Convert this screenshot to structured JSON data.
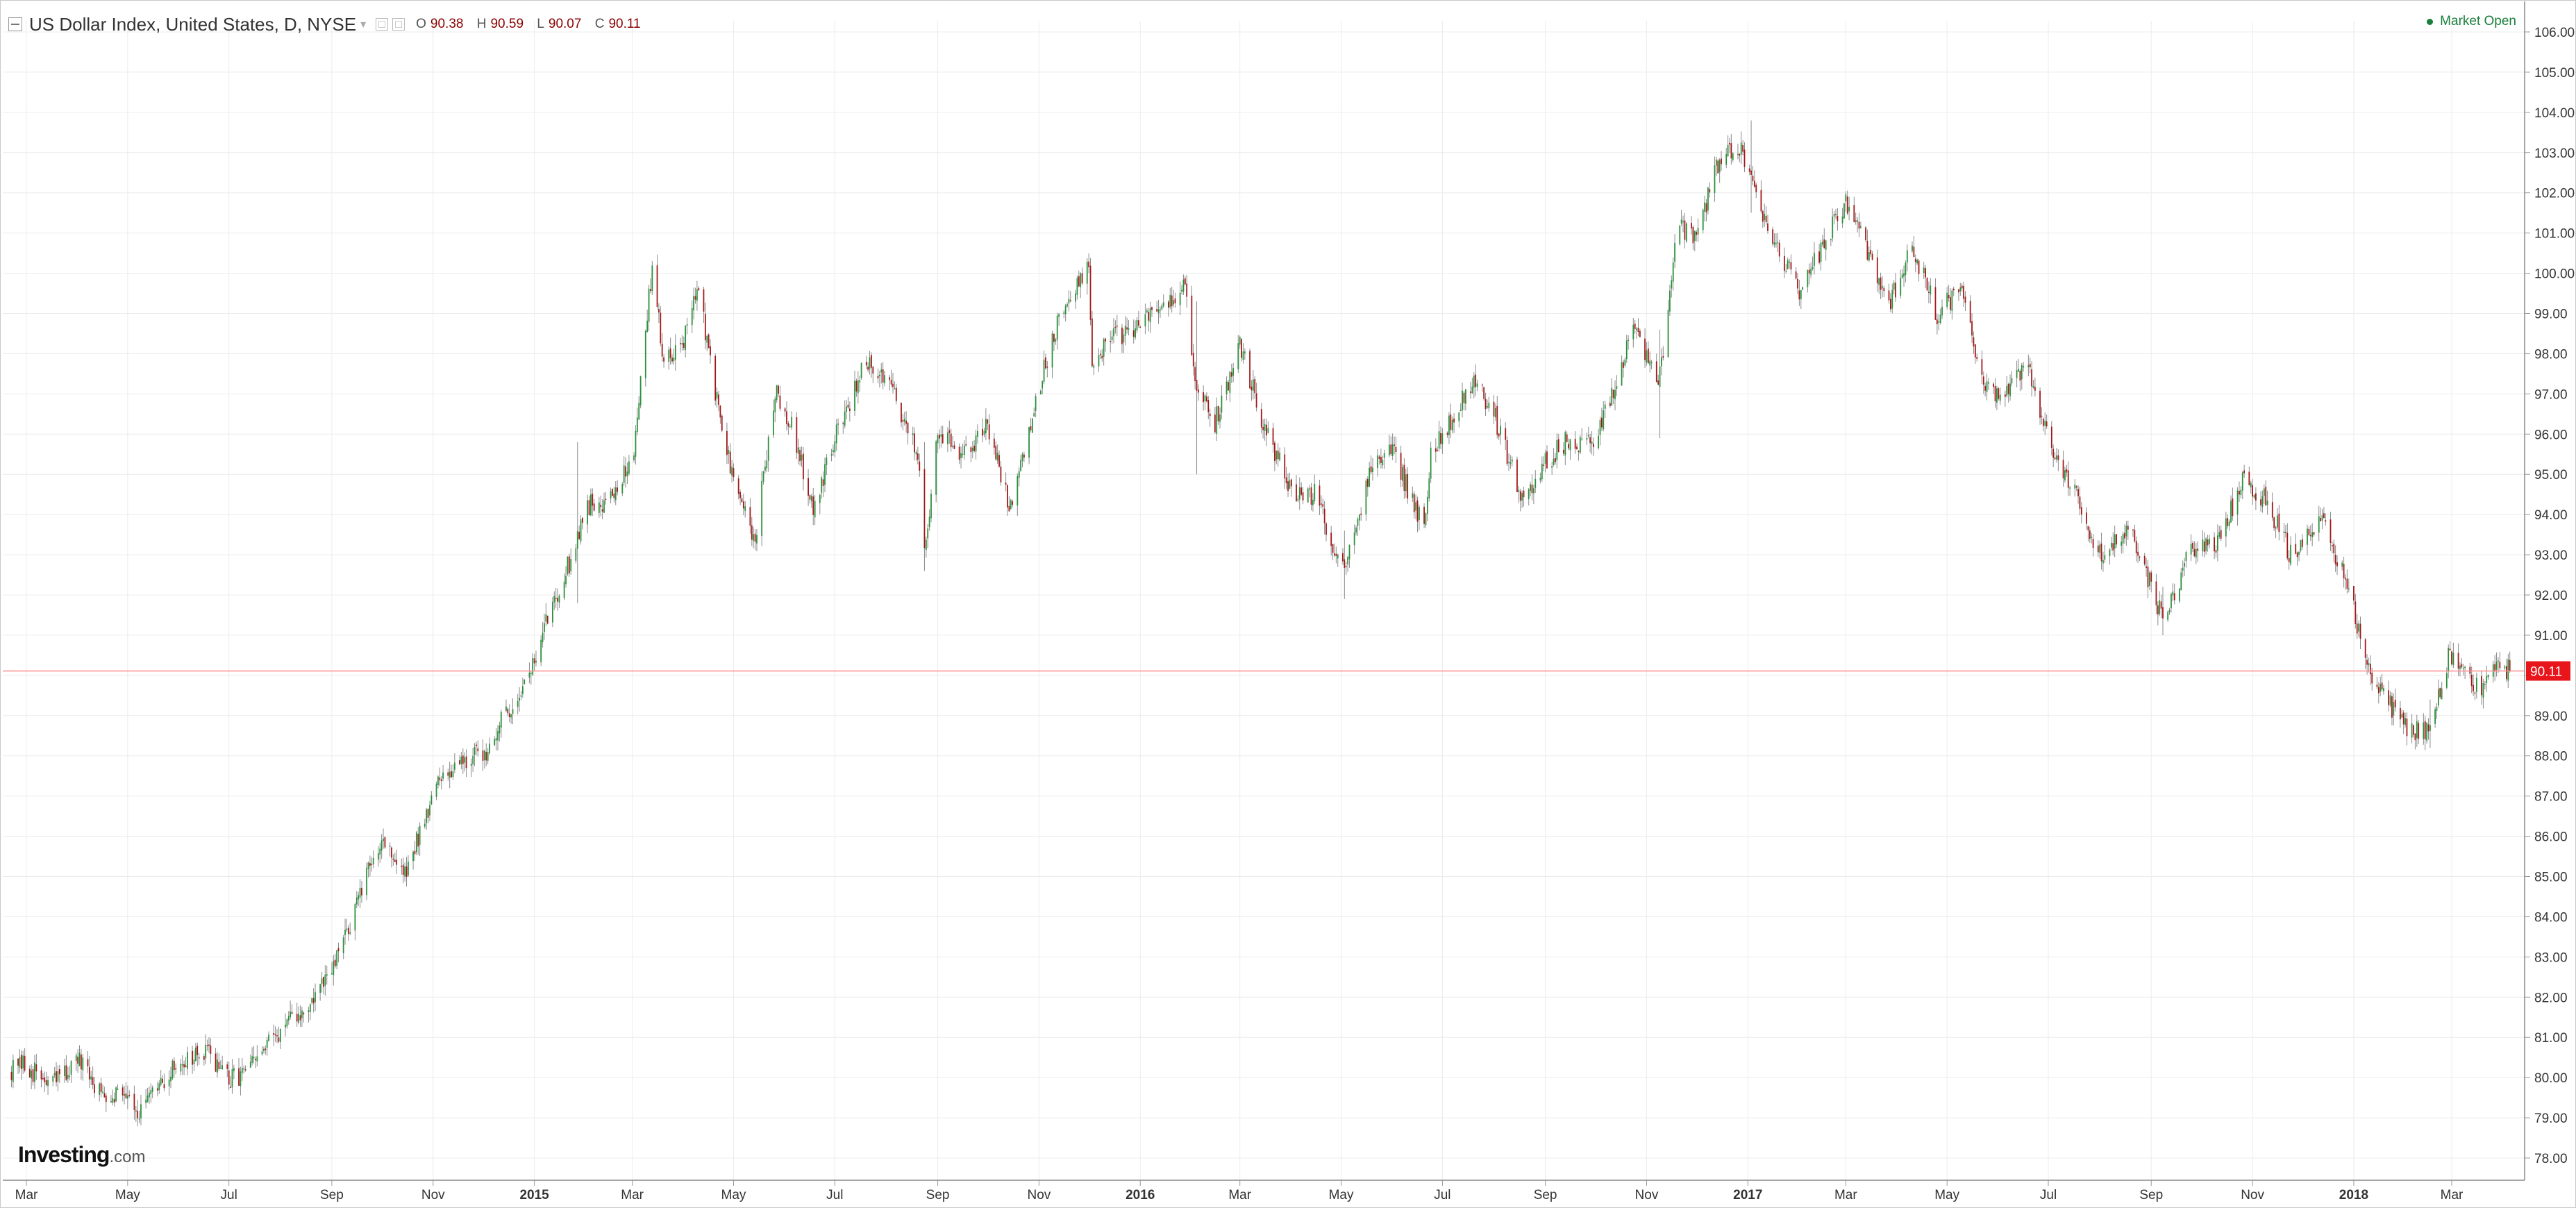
{
  "header": {
    "title": "US Dollar Index, United States, D, NYSE",
    "ohlc": [
      {
        "label": "O",
        "value": "90.38"
      },
      {
        "label": "H",
        "value": "90.59"
      },
      {
        "label": "L",
        "value": "90.07"
      },
      {
        "label": "C",
        "value": "90.11"
      }
    ]
  },
  "status": {
    "market": "Market Open"
  },
  "branding": {
    "logo_main": "Investing",
    "logo_suffix": ".com"
  },
  "colors": {
    "up": "#2a8f3a",
    "down": "#a01818",
    "grid": "#ececec",
    "price_line": "#ff8c8c",
    "price_tag": "#e8151b"
  },
  "icons": [
    "collapse-icon",
    "settings-icon",
    "close-icon",
    "dropdown-arrow-icon",
    "status-dot-icon"
  ],
  "chart_data": {
    "type": "candlestick",
    "title": "US Dollar Index, United States, D, NYSE",
    "ylim": [
      77.5,
      106.5
    ],
    "yticks": [
      78,
      79,
      80,
      81,
      82,
      83,
      84,
      85,
      86,
      87,
      88,
      89,
      90,
      91,
      92,
      93,
      94,
      95,
      96,
      97,
      98,
      99,
      100,
      101,
      102,
      103,
      104,
      105,
      106
    ],
    "ytick_labels": [
      "78.00",
      "79.00",
      "80.00",
      "81.00",
      "82.00",
      "83.00",
      "84.00",
      "85.00",
      "86.00",
      "87.00",
      "88.00",
      "89.00",
      "90.00",
      "91.00",
      "92.00",
      "93.00",
      "94.00",
      "95.00",
      "96.00",
      "97.00",
      "98.00",
      "99.00",
      "100.00",
      "101.00",
      "102.00",
      "103.00",
      "104.00",
      "105.00",
      "106.00"
    ],
    "xlim": [
      "2014-02-20",
      "2018-04-10"
    ],
    "xticks": [
      {
        "label": "Mar",
        "date": "2014-03-01"
      },
      {
        "label": "May",
        "date": "2014-05-01"
      },
      {
        "label": "Jul",
        "date": "2014-07-01"
      },
      {
        "label": "Sep",
        "date": "2014-09-01"
      },
      {
        "label": "Nov",
        "date": "2014-11-01"
      },
      {
        "label": "2015",
        "date": "2015-01-01",
        "year": true
      },
      {
        "label": "Mar",
        "date": "2015-03-01"
      },
      {
        "label": "May",
        "date": "2015-05-01"
      },
      {
        "label": "Jul",
        "date": "2015-07-01"
      },
      {
        "label": "Sep",
        "date": "2015-09-01"
      },
      {
        "label": "Nov",
        "date": "2015-11-01"
      },
      {
        "label": "2016",
        "date": "2016-01-01",
        "year": true
      },
      {
        "label": "Mar",
        "date": "2016-03-01"
      },
      {
        "label": "May",
        "date": "2016-05-01"
      },
      {
        "label": "Jul",
        "date": "2016-07-01"
      },
      {
        "label": "Sep",
        "date": "2016-09-01"
      },
      {
        "label": "Nov",
        "date": "2016-11-01"
      },
      {
        "label": "2017",
        "date": "2017-01-01",
        "year": true
      },
      {
        "label": "Mar",
        "date": "2017-03-01"
      },
      {
        "label": "May",
        "date": "2017-05-01"
      },
      {
        "label": "Jul",
        "date": "2017-07-01"
      },
      {
        "label": "Sep",
        "date": "2017-09-01"
      },
      {
        "label": "Nov",
        "date": "2017-11-01"
      },
      {
        "label": "2018",
        "date": "2018-01-01",
        "year": true
      },
      {
        "label": "Mar",
        "date": "2018-03-01"
      }
    ],
    "last_price": 90.11,
    "last_price_label": "90.11",
    "grid": true,
    "close_path": [
      [
        "2014-02-20",
        80.2
      ],
      [
        "2014-03-01",
        80.3
      ],
      [
        "2014-03-15",
        79.8
      ],
      [
        "2014-04-01",
        80.4
      ],
      [
        "2014-04-15",
        79.6
      ],
      [
        "2014-05-01",
        79.7
      ],
      [
        "2014-05-08",
        79.1
      ],
      [
        "2014-06-01",
        80.4
      ],
      [
        "2014-06-20",
        80.6
      ],
      [
        "2014-07-01",
        79.9
      ],
      [
        "2014-07-15",
        80.3
      ],
      [
        "2014-08-01",
        81.2
      ],
      [
        "2014-08-15",
        81.6
      ],
      [
        "2014-09-01",
        82.6
      ],
      [
        "2014-09-15",
        84.2
      ],
      [
        "2014-10-01",
        86.0
      ],
      [
        "2014-10-15",
        85.0
      ],
      [
        "2014-11-01",
        87.1
      ],
      [
        "2014-11-15",
        87.9
      ],
      [
        "2014-12-01",
        88.0
      ],
      [
        "2014-12-10",
        88.7
      ],
      [
        "2014-12-18",
        89.2
      ],
      [
        "2015-01-01",
        90.3
      ],
      [
        "2015-01-10",
        91.6
      ],
      [
        "2015-01-22",
        92.8
      ],
      [
        "2015-02-01",
        94.2
      ],
      [
        "2015-02-15",
        94.4
      ],
      [
        "2015-03-01",
        95.3
      ],
      [
        "2015-03-13",
        100.2
      ],
      [
        "2015-03-20",
        97.8
      ],
      [
        "2015-04-01",
        98.4
      ],
      [
        "2015-04-10",
        99.6
      ],
      [
        "2015-04-20",
        97.0
      ],
      [
        "2015-05-01",
        94.8
      ],
      [
        "2015-05-14",
        93.3
      ],
      [
        "2015-05-26",
        97.1
      ],
      [
        "2015-06-05",
        96.2
      ],
      [
        "2015-06-18",
        94.2
      ],
      [
        "2015-07-01",
        95.9
      ],
      [
        "2015-07-20",
        97.8
      ],
      [
        "2015-08-01",
        97.4
      ],
      [
        "2015-08-20",
        95.5
      ],
      [
        "2015-08-24",
        93.1
      ],
      [
        "2015-09-01",
        95.9
      ],
      [
        "2015-09-20",
        95.5
      ],
      [
        "2015-10-01",
        96.3
      ],
      [
        "2015-10-15",
        94.1
      ],
      [
        "2015-11-01",
        97.2
      ],
      [
        "2015-11-15",
        99.2
      ],
      [
        "2015-12-01",
        100.1
      ],
      [
        "2015-12-03",
        97.8
      ],
      [
        "2015-12-15",
        98.4
      ],
      [
        "2016-01-01",
        98.7
      ],
      [
        "2016-01-15",
        99.2
      ],
      [
        "2016-01-28",
        99.6
      ],
      [
        "2016-02-04",
        97.2
      ],
      [
        "2016-02-15",
        96.3
      ],
      [
        "2016-03-01",
        98.2
      ],
      [
        "2016-03-15",
        96.3
      ],
      [
        "2016-04-01",
        94.6
      ],
      [
        "2016-04-15",
        94.5
      ],
      [
        "2016-05-02",
        92.6
      ],
      [
        "2016-05-20",
        95.3
      ],
      [
        "2016-06-01",
        95.6
      ],
      [
        "2016-06-20",
        93.6
      ],
      [
        "2016-06-24",
        95.6
      ],
      [
        "2016-07-01",
        96.0
      ],
      [
        "2016-07-20",
        97.4
      ],
      [
        "2016-08-01",
        96.5
      ],
      [
        "2016-08-18",
        94.4
      ],
      [
        "2016-09-01",
        95.3
      ],
      [
        "2016-09-15",
        95.9
      ],
      [
        "2016-10-01",
        95.7
      ],
      [
        "2016-10-25",
        98.8
      ],
      [
        "2016-11-08",
        97.1
      ],
      [
        "2016-11-20",
        101.2
      ],
      [
        "2016-12-01",
        100.9
      ],
      [
        "2016-12-15",
        102.9
      ],
      [
        "2016-12-28",
        103.1
      ],
      [
        "2017-01-10",
        101.5
      ],
      [
        "2017-01-20",
        100.6
      ],
      [
        "2017-02-01",
        99.5
      ],
      [
        "2017-02-20",
        101.1
      ],
      [
        "2017-03-01",
        101.8
      ],
      [
        "2017-03-15",
        100.4
      ],
      [
        "2017-03-28",
        99.3
      ],
      [
        "2017-04-10",
        100.7
      ],
      [
        "2017-04-25",
        99.0
      ],
      [
        "2017-05-10",
        99.6
      ],
      [
        "2017-05-20",
        97.4
      ],
      [
        "2017-06-01",
        97.0
      ],
      [
        "2017-06-20",
        97.6
      ],
      [
        "2017-07-01",
        95.8
      ],
      [
        "2017-07-20",
        94.3
      ],
      [
        "2017-08-01",
        93.0
      ],
      [
        "2017-08-20",
        93.6
      ],
      [
        "2017-09-08",
        91.4
      ],
      [
        "2017-09-25",
        93.1
      ],
      [
        "2017-10-10",
        93.2
      ],
      [
        "2017-10-27",
        94.9
      ],
      [
        "2017-11-10",
        94.3
      ],
      [
        "2017-11-25",
        92.9
      ],
      [
        "2017-12-12",
        94.0
      ],
      [
        "2017-12-29",
        92.1
      ],
      [
        "2018-01-10",
        90.2
      ],
      [
        "2018-01-25",
        89.1
      ],
      [
        "2018-02-01",
        88.7
      ],
      [
        "2018-02-16",
        88.6
      ],
      [
        "2018-02-28",
        90.6
      ],
      [
        "2018-03-10",
        90.0
      ],
      [
        "2018-03-20",
        89.6
      ],
      [
        "2018-03-29",
        90.3
      ],
      [
        "2018-04-05",
        90.11
      ]
    ],
    "notable_wicks": [
      [
        "2015-01-27",
        95.8,
        91.8
      ],
      [
        "2015-08-24",
        95.8,
        92.6
      ],
      [
        "2016-02-04",
        99.3,
        95.0
      ],
      [
        "2016-05-03",
        93.6,
        91.9
      ],
      [
        "2016-11-09",
        98.6,
        95.9
      ],
      [
        "2017-01-03",
        103.8,
        101.5
      ],
      [
        "2017-09-08",
        92.2,
        91.0
      ],
      [
        "2018-02-16",
        89.4,
        88.2
      ]
    ]
  }
}
